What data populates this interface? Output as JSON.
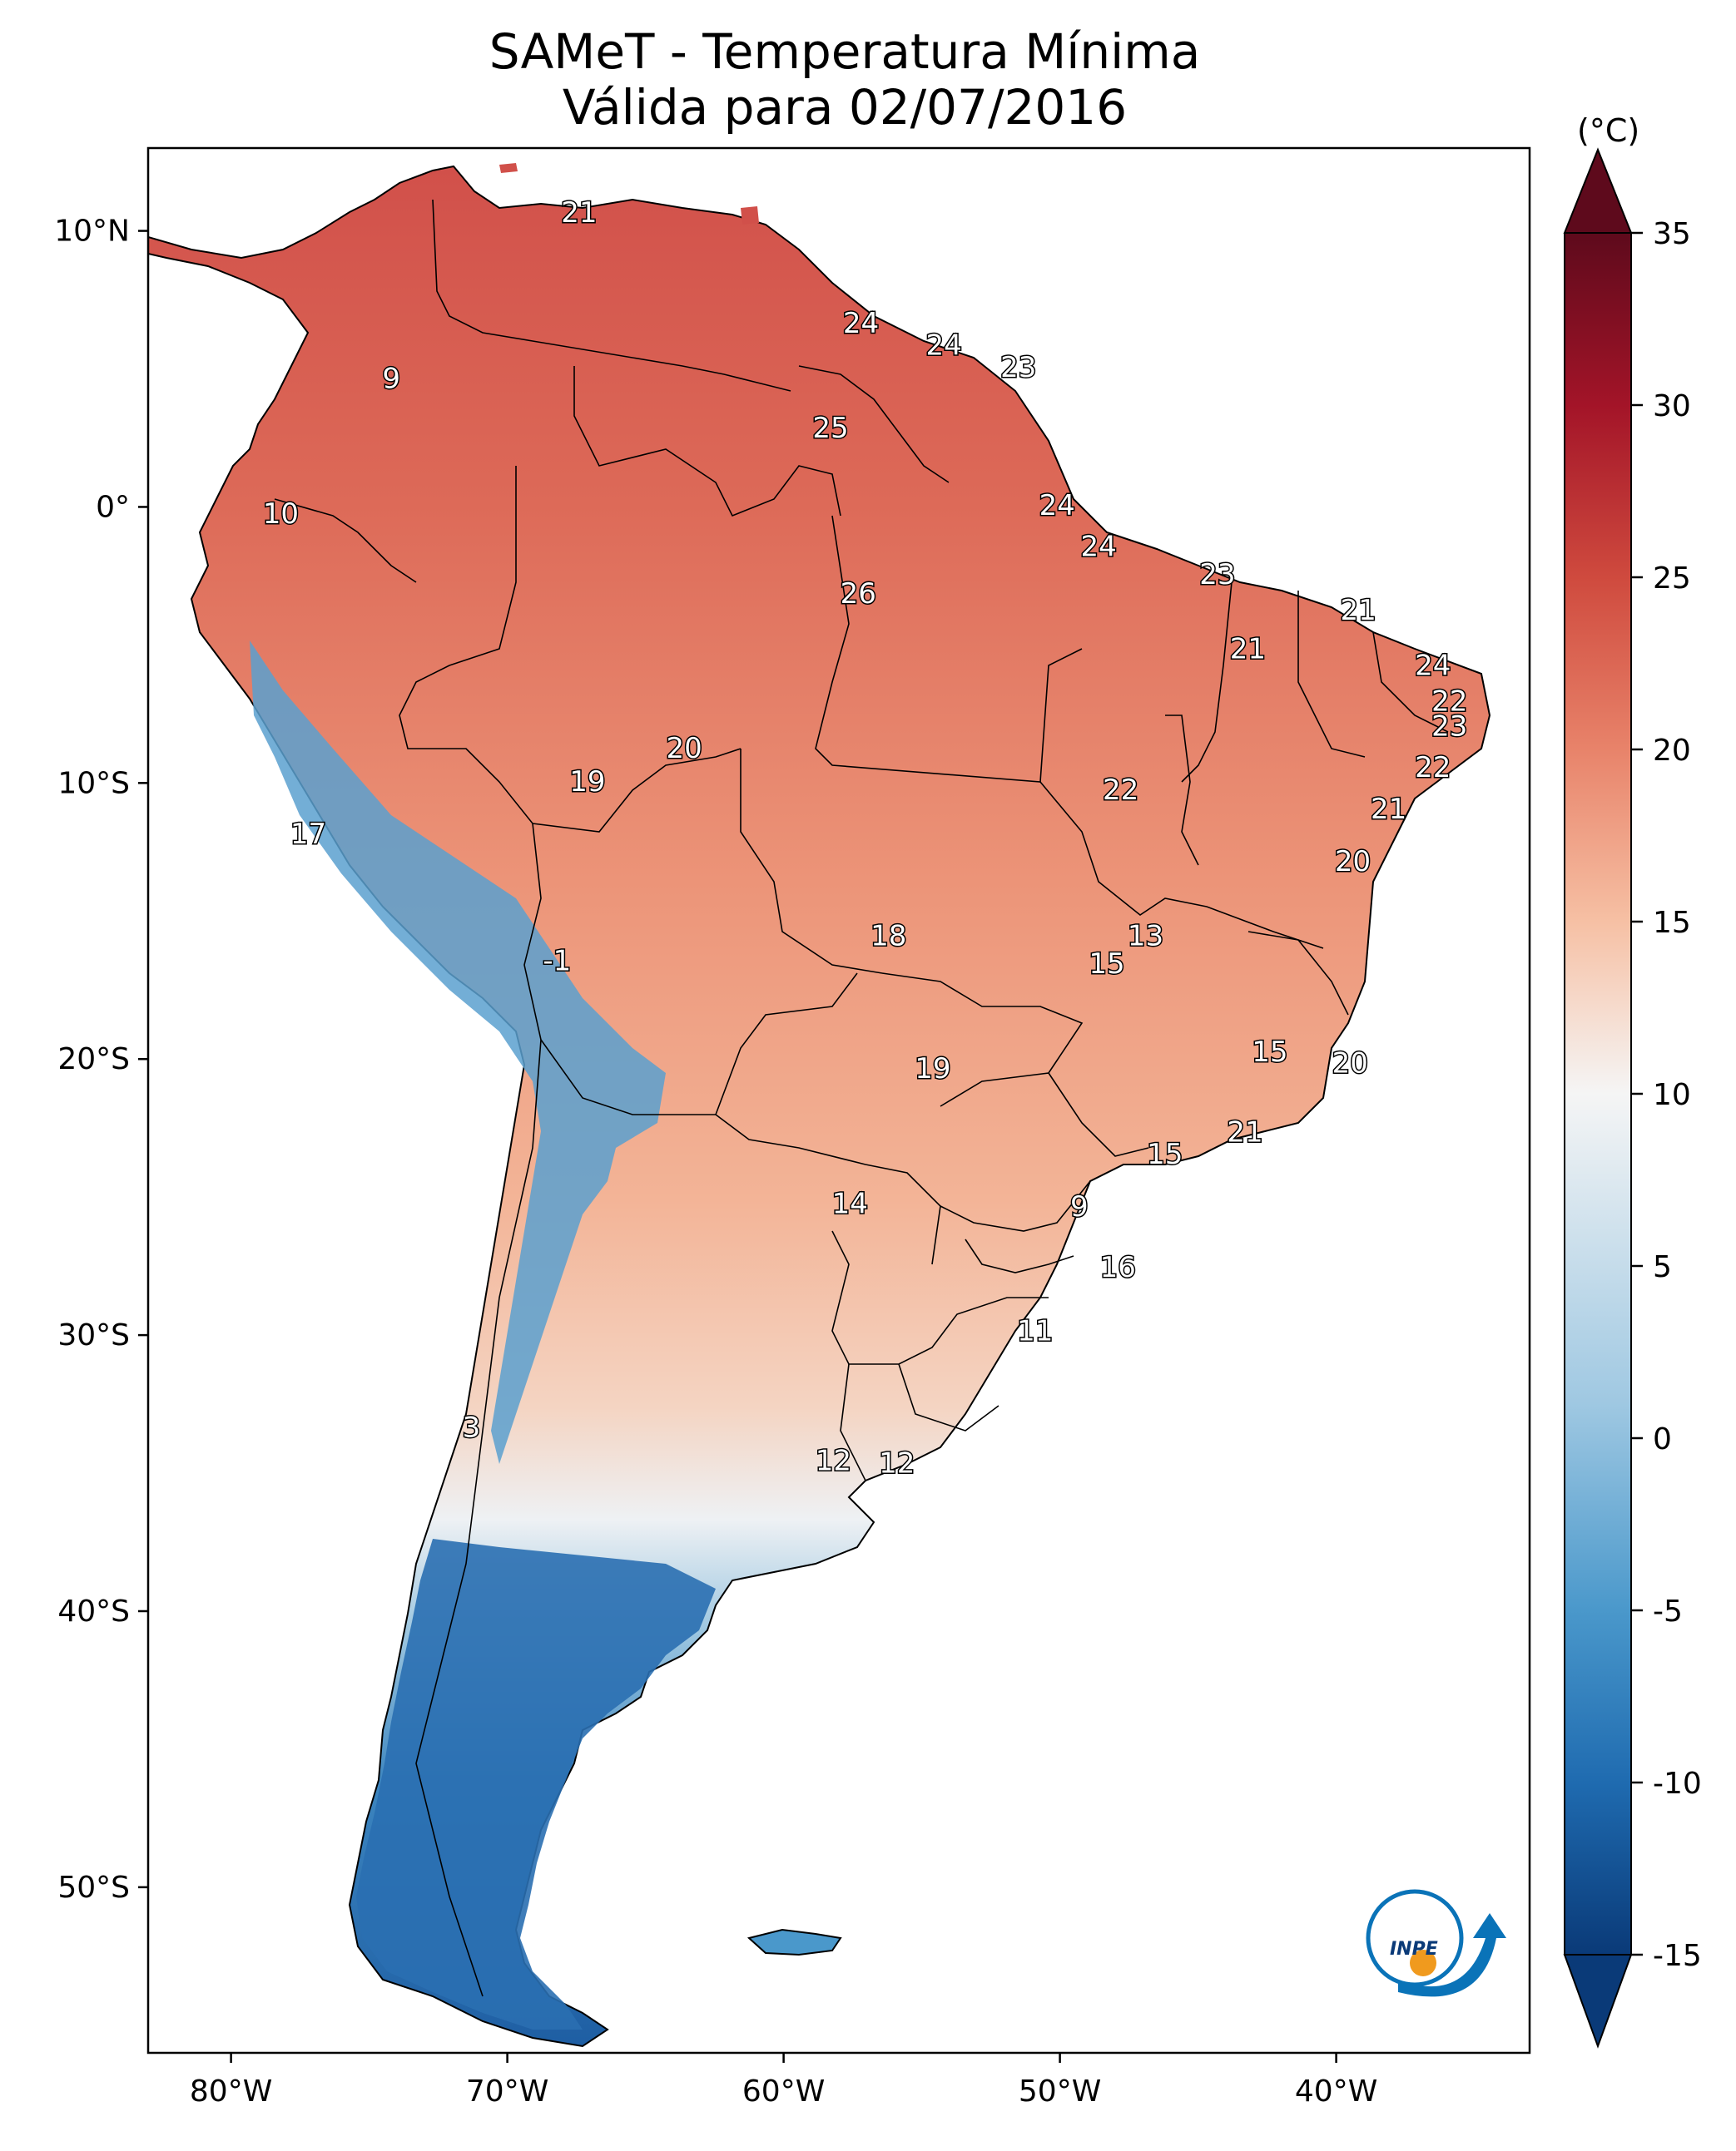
{
  "title": {
    "line1": "SAMeT - Temperatura Mínima",
    "line2": "Válida para 02/07/2016"
  },
  "colorbar": {
    "unit": "(°C)",
    "ticks": [
      {
        "value": 35,
        "label": "35"
      },
      {
        "value": 30,
        "label": "30"
      },
      {
        "value": 25,
        "label": "25"
      },
      {
        "value": 20,
        "label": "20"
      },
      {
        "value": 15,
        "label": "15"
      },
      {
        "value": 10,
        "label": "10"
      },
      {
        "value": 5,
        "label": "5"
      },
      {
        "value": 0,
        "label": "0"
      },
      {
        "value": -5,
        "label": "-5"
      },
      {
        "value": -10,
        "label": "-10"
      },
      {
        "value": -15,
        "label": "-15"
      }
    ],
    "range": [
      -15,
      35
    ],
    "colors": [
      "#0a3a78",
      "#1f6bb0",
      "#4a98cb",
      "#9fc8e2",
      "#f5f5f5",
      "#f6c0a4",
      "#e8836a",
      "#cf4a3e",
      "#a31428",
      "#5e0a1c"
    ]
  },
  "axes": {
    "lat_ticks": [
      {
        "value": 10,
        "label": "10°N"
      },
      {
        "value": 0,
        "label": "0°"
      },
      {
        "value": -10,
        "label": "10°S"
      },
      {
        "value": -20,
        "label": "20°S"
      },
      {
        "value": -30,
        "label": "30°S"
      },
      {
        "value": -40,
        "label": "40°S"
      },
      {
        "value": -50,
        "label": "50°S"
      }
    ],
    "lon_ticks": [
      {
        "value": -80,
        "label": "80°W"
      },
      {
        "value": -70,
        "label": "70°W"
      },
      {
        "value": -60,
        "label": "60°W"
      },
      {
        "value": -50,
        "label": "50°W"
      },
      {
        "value": -40,
        "label": "40°W"
      }
    ],
    "lon_range": [
      -83,
      -33
    ],
    "lat_range": [
      -56,
      13
    ]
  },
  "station_values": [
    {
      "lon": -67.4,
      "lat": 10.6,
      "text": "21"
    },
    {
      "lon": -57.2,
      "lat": 6.6,
      "text": "24"
    },
    {
      "lon": -54.2,
      "lat": 5.8,
      "text": "24"
    },
    {
      "lon": -51.5,
      "lat": 5.0,
      "text": "23"
    },
    {
      "lon": -74.2,
      "lat": 4.6,
      "text": "9"
    },
    {
      "lon": -58.3,
      "lat": 2.8,
      "text": "25"
    },
    {
      "lon": -78.2,
      "lat": -0.3,
      "text": "10"
    },
    {
      "lon": -50.1,
      "lat": 0.0,
      "text": "24"
    },
    {
      "lon": -48.6,
      "lat": -1.5,
      "text": "24"
    },
    {
      "lon": -44.3,
      "lat": -2.5,
      "text": "23"
    },
    {
      "lon": -39.2,
      "lat": -3.8,
      "text": "21"
    },
    {
      "lon": -57.3,
      "lat": -3.2,
      "text": "26"
    },
    {
      "lon": -43.2,
      "lat": -5.2,
      "text": "21"
    },
    {
      "lon": -36.5,
      "lat": -5.8,
      "text": "24"
    },
    {
      "lon": -35.9,
      "lat": -7.1,
      "text": "22"
    },
    {
      "lon": -35.9,
      "lat": -8.0,
      "text": "23"
    },
    {
      "lon": -36.5,
      "lat": -9.5,
      "text": "22"
    },
    {
      "lon": -63.6,
      "lat": -8.8,
      "text": "20"
    },
    {
      "lon": -67.1,
      "lat": -10.0,
      "text": "19"
    },
    {
      "lon": -47.8,
      "lat": -10.3,
      "text": "22"
    },
    {
      "lon": -38.1,
      "lat": -11.0,
      "text": "21"
    },
    {
      "lon": -77.2,
      "lat": -11.9,
      "text": "17"
    },
    {
      "lon": -39.4,
      "lat": -12.9,
      "text": "20"
    },
    {
      "lon": -56.2,
      "lat": -15.6,
      "text": "18"
    },
    {
      "lon": -46.9,
      "lat": -15.6,
      "text": "13"
    },
    {
      "lon": -48.3,
      "lat": -16.6,
      "text": "15"
    },
    {
      "lon": -68.2,
      "lat": -16.5,
      "text": "-1"
    },
    {
      "lon": -54.6,
      "lat": -20.4,
      "text": "19"
    },
    {
      "lon": -42.4,
      "lat": -19.8,
      "text": "15"
    },
    {
      "lon": -39.5,
      "lat": -20.2,
      "text": "20"
    },
    {
      "lon": -43.3,
      "lat": -22.7,
      "text": "21"
    },
    {
      "lon": -46.2,
      "lat": -23.5,
      "text": "15"
    },
    {
      "lon": -57.6,
      "lat": -25.3,
      "text": "14"
    },
    {
      "lon": -49.3,
      "lat": -25.4,
      "text": "9"
    },
    {
      "lon": -47.9,
      "lat": -27.6,
      "text": "16"
    },
    {
      "lon": -50.9,
      "lat": -29.9,
      "text": "11"
    },
    {
      "lon": -71.3,
      "lat": -33.4,
      "text": "3"
    },
    {
      "lon": -58.2,
      "lat": -34.6,
      "text": "12"
    },
    {
      "lon": -55.9,
      "lat": -34.7,
      "text": "12"
    }
  ],
  "logo": {
    "text": "INPE",
    "colors": [
      "#0a73b8",
      "#f09a1e"
    ]
  }
}
